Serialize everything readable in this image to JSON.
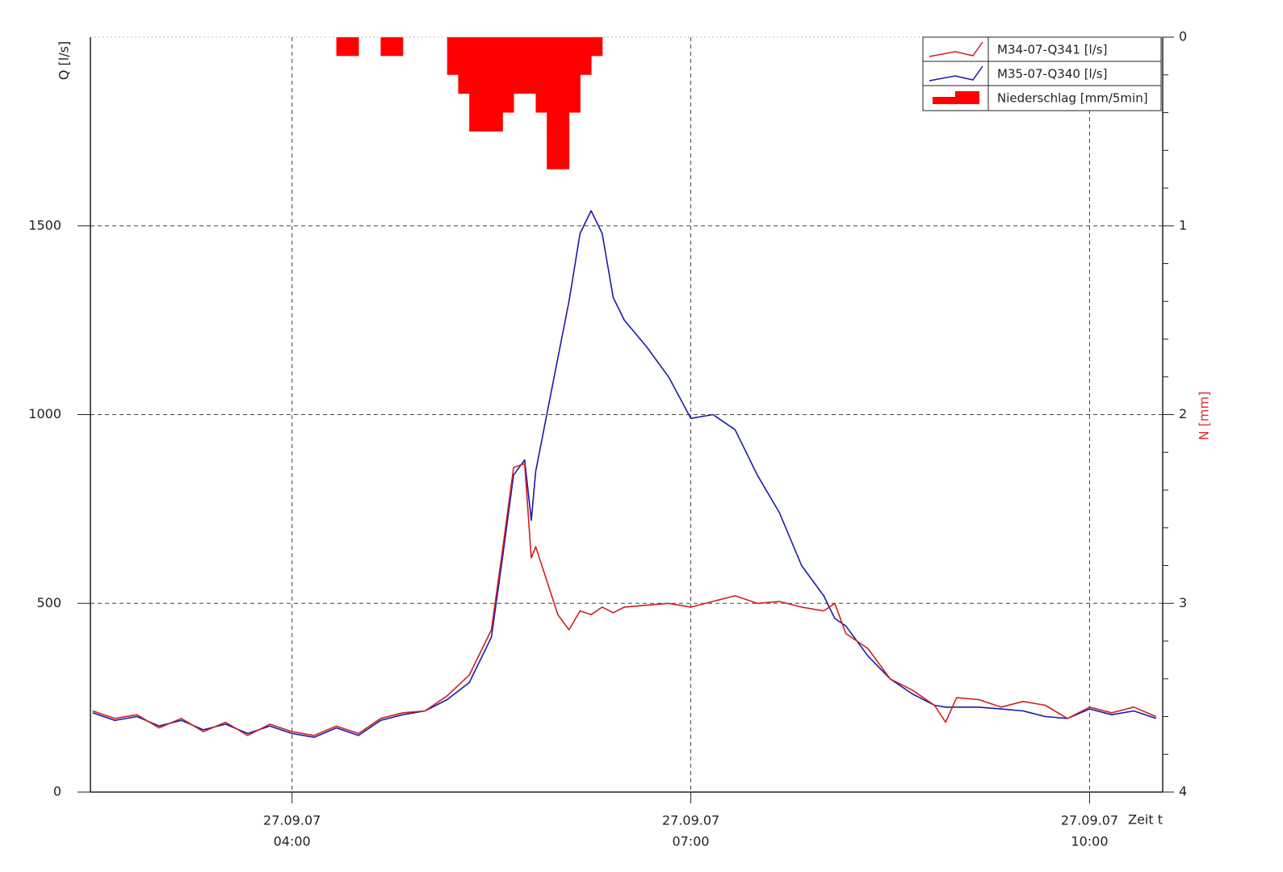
{
  "chart_data": {
    "type": "line",
    "y_label": "Q [l/s]",
    "y2_label": "N [mm]",
    "x_label": "Zeit t",
    "xlim": [
      "27.09.07 02:29",
      "27.09.07 10:33"
    ],
    "xticks": [
      {
        "value": "27.09.07 04:00",
        "label": [
          "27.09.07",
          "04:00"
        ]
      },
      {
        "value": "27.09.07 07:00",
        "label": [
          "27.09.07",
          "07:00"
        ]
      },
      {
        "value": "27.09.07 10:00",
        "label": [
          "27.09.07",
          "10:00"
        ]
      }
    ],
    "ylim": [
      0,
      2000
    ],
    "yticks": [
      0,
      500,
      1000,
      1500
    ],
    "y2lim": [
      4,
      0
    ],
    "y2ticks": [
      0,
      1,
      2,
      3,
      4
    ],
    "y2minor": [
      0.2,
      0.4,
      0.6,
      0.8,
      1.2,
      1.4,
      1.6,
      1.8,
      2.2,
      2.4,
      2.6,
      2.8,
      3.2,
      3.4,
      3.6,
      3.8
    ],
    "grid": true,
    "legend": "upper right",
    "x": [
      "27.09.07 02:30",
      "27.09.07 02:40",
      "27.09.07 02:50",
      "27.09.07 03:00",
      "27.09.07 03:10",
      "27.09.07 03:20",
      "27.09.07 03:30",
      "27.09.07 03:40",
      "27.09.07 03:50",
      "27.09.07 04:00",
      "27.09.07 04:10",
      "27.09.07 04:20",
      "27.09.07 04:30",
      "27.09.07 04:40",
      "27.09.07 04:50",
      "27.09.07 05:00",
      "27.09.07 05:10",
      "27.09.07 05:20",
      "27.09.07 05:30",
      "27.09.07 05:35",
      "27.09.07 05:40",
      "27.09.07 05:45",
      "27.09.07 05:48",
      "27.09.07 05:50",
      "27.09.07 06:00",
      "27.09.07 06:05",
      "27.09.07 06:10",
      "27.09.07 06:15",
      "27.09.07 06:20",
      "27.09.07 06:25",
      "27.09.07 06:30",
      "27.09.07 06:40",
      "27.09.07 06:50",
      "27.09.07 07:00",
      "27.09.07 07:10",
      "27.09.07 07:20",
      "27.09.07 07:30",
      "27.09.07 07:40",
      "27.09.07 07:50",
      "27.09.07 08:00",
      "27.09.07 08:05",
      "27.09.07 08:10",
      "27.09.07 08:20",
      "27.09.07 08:30",
      "27.09.07 08:40",
      "27.09.07 08:50",
      "27.09.07 08:55",
      "27.09.07 09:00",
      "27.09.07 09:10",
      "27.09.07 09:20",
      "27.09.07 09:30",
      "27.09.07 09:40",
      "27.09.07 09:50",
      "27.09.07 10:00",
      "27.09.07 10:10",
      "27.09.07 10:20",
      "27.09.07 10:30"
    ],
    "series": [
      {
        "name": "M34-07-Q341 [l/s]",
        "type": "line",
        "color": "#cc2020",
        "values": [
          215,
          195,
          205,
          170,
          195,
          160,
          185,
          150,
          180,
          160,
          150,
          175,
          155,
          195,
          210,
          215,
          255,
          310,
          430,
          640,
          860,
          870,
          620,
          650,
          470,
          430,
          480,
          470,
          490,
          475,
          490,
          495,
          500,
          490,
          505,
          520,
          500,
          505,
          490,
          480,
          500,
          420,
          380,
          300,
          270,
          230,
          185,
          250,
          245,
          225,
          240,
          230,
          195,
          225,
          210,
          225,
          200
        ]
      },
      {
        "name": "M35-07-Q340 [l/s]",
        "type": "line",
        "color": "#1a1aa8",
        "values": [
          210,
          190,
          200,
          175,
          190,
          165,
          180,
          155,
          175,
          155,
          145,
          170,
          150,
          190,
          205,
          215,
          245,
          290,
          410,
          620,
          840,
          880,
          720,
          850,
          1150,
          1300,
          1480,
          1540,
          1480,
          1310,
          1250,
          1180,
          1100,
          990,
          1000,
          960,
          840,
          740,
          600,
          520,
          460,
          440,
          360,
          300,
          260,
          230,
          225,
          225,
          225,
          220,
          215,
          200,
          195,
          220,
          205,
          215,
          195
        ]
      },
      {
        "name": "Niederschlag  [mm/5min]",
        "type": "bar",
        "axis": "y2",
        "color": "#ff0000",
        "x": [
          "27.09.07 04:20",
          "27.09.07 04:25",
          "27.09.07 04:40",
          "27.09.07 04:45",
          "27.09.07 05:10",
          "27.09.07 05:15",
          "27.09.07 05:20",
          "27.09.07 05:25",
          "27.09.07 05:30",
          "27.09.07 05:35",
          "27.09.07 05:40",
          "27.09.07 05:45",
          "27.09.07 05:50",
          "27.09.07 05:55",
          "27.09.07 06:00",
          "27.09.07 06:05",
          "27.09.07 06:10",
          "27.09.07 06:15"
        ],
        "values": [
          0.1,
          0.1,
          0.1,
          0.1,
          0.2,
          0.3,
          0.5,
          0.5,
          0.5,
          0.4,
          0.3,
          0.3,
          0.4,
          0.7,
          0.7,
          0.4,
          0.2,
          0.1
        ]
      }
    ]
  }
}
